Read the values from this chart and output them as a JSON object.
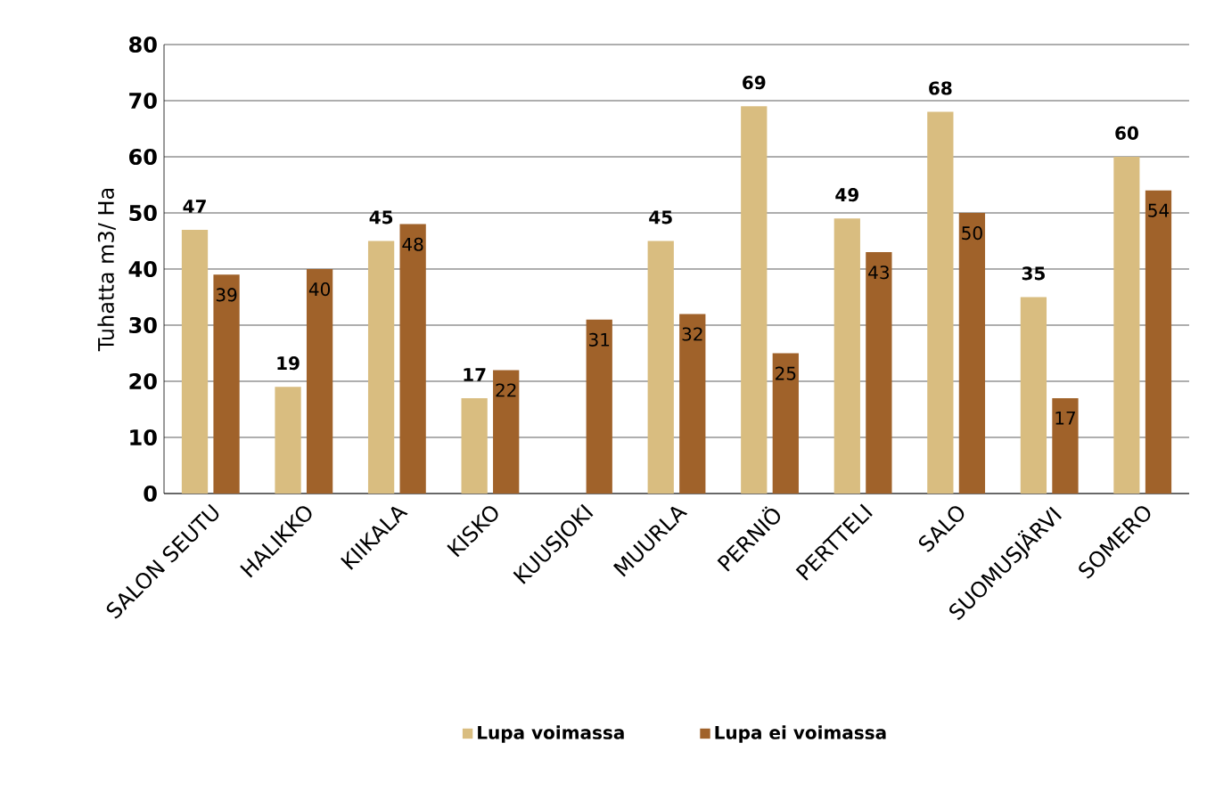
{
  "chart_data": {
    "type": "bar",
    "ylabel": "Tuhatta m3/ Ha",
    "categories": [
      "SALON SEUTU",
      "HALIKKO",
      "KIIKALA",
      "KISKO",
      "KUUSJOKI",
      "MUURLA",
      "PERNIÖ",
      "PERTTELI",
      "SALO",
      "SUOMUSJÄRVI",
      "SOMERO"
    ],
    "series": [
      {
        "name": "Lupa voimassa",
        "color": "#d9bd80",
        "values": [
          47,
          19,
          45,
          17,
          null,
          45,
          69,
          49,
          68,
          35,
          60
        ]
      },
      {
        "name": "Lupa ei voimassa",
        "color": "#a0622a",
        "values": [
          39,
          40,
          48,
          22,
          31,
          32,
          25,
          43,
          50,
          17,
          54
        ]
      }
    ],
    "ylim": [
      0,
      80
    ],
    "yticks": [
      0,
      10,
      20,
      30,
      40,
      50,
      60,
      70,
      80
    ],
    "grid": "y",
    "legend": "bottom",
    "data_labels": true
  }
}
